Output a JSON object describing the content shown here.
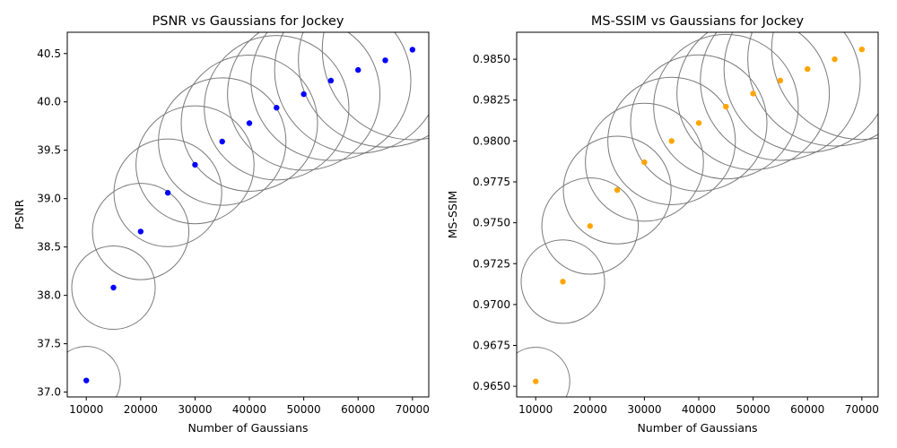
{
  "chart_data": [
    {
      "type": "scatter",
      "title": "PSNR vs Gaussians for Jockey",
      "xlabel": "Number of Gaussians",
      "ylabel": "PSNR",
      "xlim": [
        6500,
        73000
      ],
      "ylim": [
        36.95,
        40.72
      ],
      "xticks": [
        10000,
        20000,
        30000,
        40000,
        50000,
        60000,
        70000
      ],
      "xtick_labels": [
        "10000",
        "20000",
        "30000",
        "40000",
        "50000",
        "60000",
        "70000"
      ],
      "yticks": [
        37.0,
        37.5,
        38.0,
        38.5,
        39.0,
        39.5,
        40.0,
        40.5
      ],
      "ytick_labels": [
        "37.0",
        "37.5",
        "38.0",
        "38.5",
        "39.0",
        "39.5",
        "40.0",
        "40.5"
      ],
      "point_color": "#0000ff",
      "bubble_edge_color": "#7a7a7a",
      "x": [
        10000,
        15000,
        20000,
        25000,
        30000,
        35000,
        40000,
        45000,
        50000,
        55000,
        60000,
        65000,
        70000
      ],
      "y": [
        37.12,
        38.08,
        38.66,
        39.06,
        39.35,
        39.59,
        39.78,
        39.94,
        40.08,
        40.22,
        40.33,
        40.43,
        40.54
      ]
    },
    {
      "type": "scatter",
      "title": "MS-SSIM vs Gaussians for Jockey",
      "xlabel": "Number of Gaussians",
      "ylabel": "MS-SSIM",
      "xlim": [
        6500,
        73000
      ],
      "ylim": [
        0.96435,
        0.98665
      ],
      "xticks": [
        10000,
        20000,
        30000,
        40000,
        50000,
        60000,
        70000
      ],
      "xtick_labels": [
        "10000",
        "20000",
        "30000",
        "40000",
        "50000",
        "60000",
        "70000"
      ],
      "yticks": [
        0.965,
        0.9675,
        0.97,
        0.9725,
        0.975,
        0.9775,
        0.98,
        0.9825,
        0.985
      ],
      "ytick_labels": [
        "0.9650",
        "0.9675",
        "0.9700",
        "0.9725",
        "0.9750",
        "0.9775",
        "0.9800",
        "0.9825",
        "0.9850"
      ],
      "point_color": "#ffa500",
      "bubble_edge_color": "#7a7a7a",
      "x": [
        10000,
        15000,
        20000,
        25000,
        30000,
        35000,
        40000,
        45000,
        50000,
        55000,
        60000,
        65000,
        70000
      ],
      "y": [
        0.9653,
        0.9714,
        0.9748,
        0.977,
        0.9787,
        0.98,
        0.9811,
        0.9821,
        0.9829,
        0.9837,
        0.9844,
        0.985,
        0.9856
      ]
    }
  ]
}
